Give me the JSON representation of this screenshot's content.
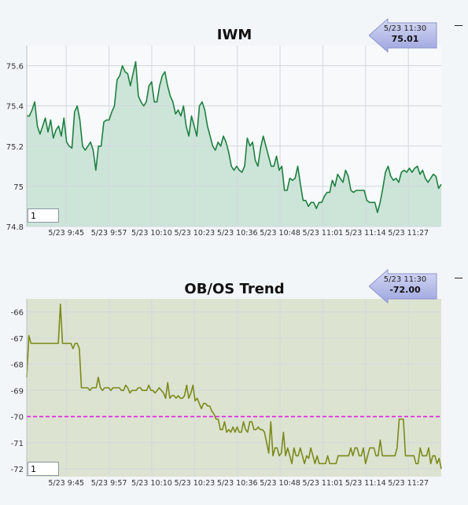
{
  "colors": {
    "iwm_line": "#1e8040",
    "iwm_fill": "#cde5d9",
    "trend_line": "#7a8a1a",
    "trend_fill": "#dde3d1",
    "reference_line": "#e020e0",
    "grid": "#d3d8dd",
    "callout_fill": "#b8bde8"
  },
  "chart_data": [
    {
      "type": "area",
      "title": "IWM",
      "callout": {
        "time": "5/23 11:30",
        "value": "75.01"
      },
      "input_value": "1",
      "ylim": [
        74.8,
        75.7
      ],
      "yticks": [
        74.8,
        75,
        75.2,
        75.4,
        75.6
      ],
      "ytick_labels": [
        "74.8",
        "75",
        "75.2",
        "75.4",
        "75.6"
      ],
      "xlim": [
        0,
        126
      ],
      "xticks": [
        12,
        25,
        38,
        51,
        64,
        77,
        90,
        103,
        116
      ],
      "xtick_labels": [
        "5/23 9:45",
        "5/23 9:57",
        "5/23 10:10",
        "5/23 10:23",
        "5/23 10:36",
        "5/23 10:48",
        "5/23 11:01",
        "5/23 11:14",
        "5/23 11:27"
      ],
      "grid": true,
      "series": [
        {
          "values": [
            75.35,
            75.35,
            75.38,
            75.42,
            75.3,
            75.26,
            75.3,
            75.34,
            75.27,
            75.33,
            75.24,
            75.28,
            75.3,
            75.25,
            75.34,
            75.22,
            75.2,
            75.19,
            75.37,
            75.4,
            75.33,
            75.2,
            75.18,
            75.2,
            75.22,
            75.18,
            75.08,
            75.2,
            75.2,
            75.32,
            75.33,
            75.33,
            75.37,
            75.4,
            75.53,
            75.55,
            75.6,
            75.57,
            75.56,
            75.5,
            75.56,
            75.62,
            75.45,
            75.42,
            75.4,
            75.42,
            75.5,
            75.52,
            75.42,
            75.42,
            75.5,
            75.55,
            75.57,
            75.5,
            75.45,
            75.42,
            75.36,
            75.38,
            75.35,
            75.4,
            75.3,
            75.25,
            75.35,
            75.3,
            75.25,
            75.4,
            75.42,
            75.38,
            75.3,
            75.25,
            75.2,
            75.18,
            75.22,
            75.2,
            75.25,
            75.22,
            75.17,
            75.1,
            75.08,
            75.1,
            75.08,
            75.07,
            75.1,
            75.24,
            75.2,
            75.22,
            75.13,
            75.1,
            75.19,
            75.25,
            75.2,
            75.15,
            75.1,
            75.1,
            75.15,
            75.08,
            75.1,
            74.98,
            74.98,
            75.04,
            75.03,
            75.04,
            75.1,
            75.01,
            74.93,
            74.93,
            74.9,
            74.92,
            74.92,
            74.89,
            74.92,
            74.92,
            74.95,
            74.97,
            74.97,
            75.03,
            75.0,
            75.06,
            75.04,
            75.02,
            75.08,
            75.05,
            74.98,
            74.97,
            74.98,
            74.98,
            74.98,
            74.98,
            74.93,
            74.92,
            74.92,
            74.92,
            74.87,
            74.92,
            74.99,
            75.07,
            75.1,
            75.05,
            75.03,
            75.04,
            75.02,
            75.07,
            75.08,
            75.07,
            75.09,
            75.07,
            75.09,
            75.1,
            75.06,
            75.08,
            75.04,
            75.02,
            75.04,
            75.06,
            75.05,
            74.99,
            75.01
          ]
        }
      ]
    },
    {
      "type": "line",
      "title": "OB/OS Trend",
      "callout": {
        "time": "5/23 11:30",
        "value": "-72.00"
      },
      "input_value": "1",
      "ylim": [
        -72.3,
        -65.5
      ],
      "yticks": [
        -72,
        -71,
        -70,
        -69,
        -68,
        -67,
        -66
      ],
      "ytick_labels": [
        "-72",
        "-71",
        "-70",
        "-69",
        "-68",
        "-67",
        "-66"
      ],
      "reference_line": -70,
      "xlim": [
        0,
        126
      ],
      "xticks": [
        12,
        25,
        38,
        51,
        64,
        77,
        90,
        103,
        116
      ],
      "xtick_labels": [
        "5/23 9:45",
        "5/23 9:57",
        "5/23 10:10",
        "5/23 10:23",
        "5/23 10:36",
        "5/23 10:48",
        "5/23 11:01",
        "5/23 11:14",
        "5/23 11:27"
      ],
      "grid": true,
      "series": [
        {
          "values": [
            -68.5,
            -66.9,
            -67.2,
            -67.2,
            -67.2,
            -67.2,
            -67.2,
            -67.2,
            -67.2,
            -67.2,
            -67.2,
            -67.2,
            -67.2,
            -67.2,
            -67.2,
            -67.2,
            -65.7,
            -67.2,
            -67.2,
            -67.2,
            -67.2,
            -67.2,
            -67.4,
            -67.2,
            -67.2,
            -67.4,
            -68.9,
            -68.9,
            -68.9,
            -68.9,
            -69.0,
            -68.9,
            -68.9,
            -68.9,
            -68.5,
            -68.9,
            -69.0,
            -68.9,
            -68.9,
            -68.9,
            -69.0,
            -68.9,
            -68.9,
            -68.9,
            -68.9,
            -69.0,
            -69.0,
            -68.8,
            -68.9,
            -69.1,
            -69.0,
            -69.0,
            -69.0,
            -68.9,
            -68.9,
            -69.0,
            -69.0,
            -69.0,
            -68.8,
            -69.0,
            -69.0,
            -69.1,
            -69.0,
            -68.9,
            -69.0,
            -69.1,
            -69.3,
            -68.7,
            -69.3,
            -69.2,
            -69.2,
            -69.3,
            -69.2,
            -69.3,
            -69.3,
            -69.2,
            -68.8,
            -69.3,
            -69.1,
            -68.8,
            -69.4,
            -69.3,
            -69.5,
            -69.7,
            -69.5,
            -69.5,
            -69.6,
            -69.6,
            -69.8,
            -69.9,
            -70.1,
            -70.1,
            -70.5,
            -70.5,
            -70.2,
            -70.6,
            -70.5,
            -70.6,
            -70.4,
            -70.6,
            -70.4,
            -70.6,
            -70.6,
            -70.2,
            -70.5,
            -70.6,
            -70.2,
            -70.2,
            -70.5,
            -70.5,
            -70.4,
            -70.5,
            -70.5,
            -70.6,
            -71.0,
            -71.4,
            -70.2,
            -71.5,
            -71.2,
            -71.2,
            -71.5,
            -71.4,
            -70.6,
            -71.5,
            -71.2,
            -71.5,
            -71.8,
            -71.2,
            -71.5,
            -71.5,
            -71.2,
            -71.5,
            -71.8,
            -71.5,
            -71.6,
            -71.2,
            -71.5,
            -71.8,
            -71.5,
            -71.8,
            -71.8,
            -71.8,
            -71.8,
            -71.5,
            -71.8,
            -71.8,
            -71.8,
            -71.8,
            -71.5,
            -71.5,
            -71.5,
            -71.5,
            -71.5,
            -71.5,
            -71.2,
            -71.5,
            -71.2,
            -71.2,
            -71.5,
            -71.5,
            -71.2,
            -71.8,
            -71.5,
            -71.2,
            -71.2,
            -71.2,
            -71.5,
            -71.5,
            -70.9,
            -71.5,
            -71.5,
            -71.5,
            -71.5,
            -71.5,
            -71.5,
            -71.5,
            -71.2,
            -70.1,
            -70.1,
            -70.1,
            -71.5,
            -71.5,
            -71.5,
            -71.5,
            -71.5,
            -71.8,
            -71.8,
            -71.2,
            -71.5,
            -71.5,
            -71.5,
            -71.2,
            -71.8,
            -71.5,
            -71.5,
            -71.8,
            -71.6,
            -72.0
          ]
        }
      ]
    }
  ]
}
